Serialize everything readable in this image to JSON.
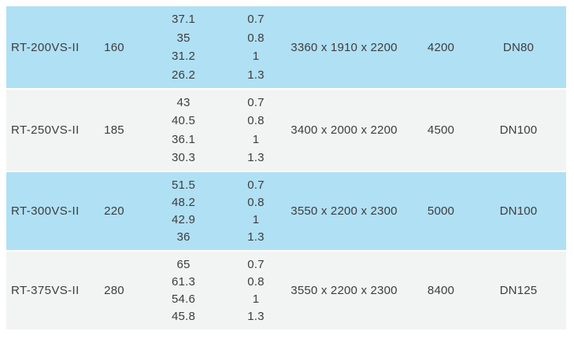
{
  "table": {
    "rows": [
      {
        "model": "RT-200VS-II",
        "col2": "160",
        "col3_lines": [
          "37.1",
          "35",
          "31.2",
          "26.2"
        ],
        "col4_lines": [
          "0.7",
          "0.8",
          "1",
          "1.3"
        ],
        "dimensions": "3360 x 1910 x 2200",
        "col6": "4200",
        "dn": "DN80"
      },
      {
        "model": "RT-250VS-II",
        "col2": "185",
        "col3_lines": [
          "43",
          "40.5",
          "36.1",
          "30.3"
        ],
        "col4_lines": [
          "0.7",
          "0.8",
          "1",
          "1.3"
        ],
        "dimensions": "3400 x 2000 x 2200",
        "col6": "4500",
        "dn": "DN100"
      },
      {
        "model": "RT-300VS-II",
        "col2": "220",
        "col3_lines": [
          "51.5",
          "48.2",
          "42.9",
          "36"
        ],
        "col4_lines": [
          "0.7",
          "0.8",
          "1",
          "1.3"
        ],
        "dimensions": "3550 x 2200 x 2300",
        "col6": "5000",
        "dn": "DN100"
      },
      {
        "model": "RT-375VS-II",
        "col2": "280",
        "col3_lines": [
          "65",
          "61.3",
          "54.6",
          "45.8"
        ],
        "col4_lines": [
          "0.7",
          "0.8",
          "1",
          "1.3"
        ],
        "dimensions": "3550 x 2200 x 2300",
        "col6": "8400",
        "dn": "DN125"
      }
    ]
  },
  "colors": {
    "row_highlight": "#b0e0f4",
    "row_alternate": "#f2f3f3",
    "text": "#3d3d3d"
  }
}
